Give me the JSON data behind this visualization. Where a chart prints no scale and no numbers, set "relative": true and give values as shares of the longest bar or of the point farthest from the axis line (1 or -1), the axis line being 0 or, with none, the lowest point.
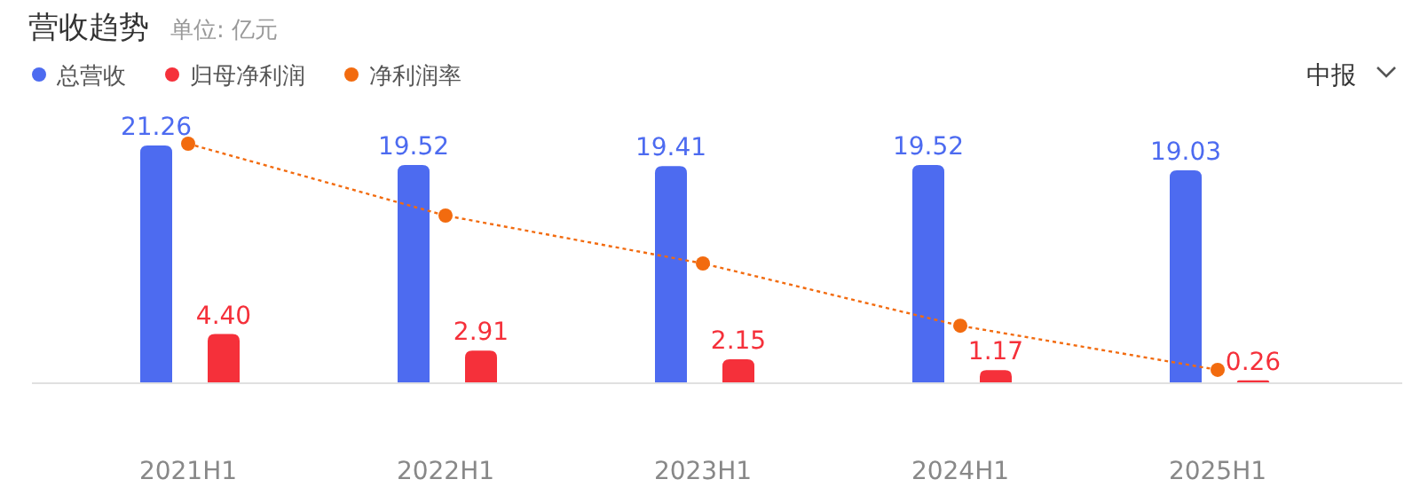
{
  "chart_data": [
    {
      "type": "bar",
      "title": "营收趋势",
      "subtitle": "单位: 亿元",
      "annotations": [
        "中报"
      ],
      "categories": [
        "2021H1",
        "2022H1",
        "2023H1",
        "2024H1",
        "2025H1"
      ],
      "series": [
        {
          "name": "总营收",
          "color": "#4d6bf0",
          "values": [
            21.26,
            19.52,
            19.41,
            19.52,
            19.03
          ],
          "value_labels": [
            "21.26",
            "19.52",
            "19.41",
            "19.52",
            "19.03"
          ]
        },
        {
          "name": "归母净利润",
          "color": "#f5303a",
          "values": [
            4.4,
            2.91,
            2.15,
            1.17,
            0.26
          ],
          "value_labels": [
            "4.40",
            "2.91",
            "2.15",
            "1.17",
            "0.26"
          ]
        }
      ],
      "legend": "top left"
    },
    {
      "type": "line",
      "relative": true,
      "categories": [
        null,
        null,
        null,
        null,
        null
      ],
      "series": [
        {
          "name": "净利润率",
          "color": "#f26b0f",
          "line_style": "dotted",
          "marker": "circle",
          "values": [
            1,
            0.7,
            0.5,
            0.24,
            0.056
          ]
        }
      ],
      "legend": "top left"
    }
  ]
}
